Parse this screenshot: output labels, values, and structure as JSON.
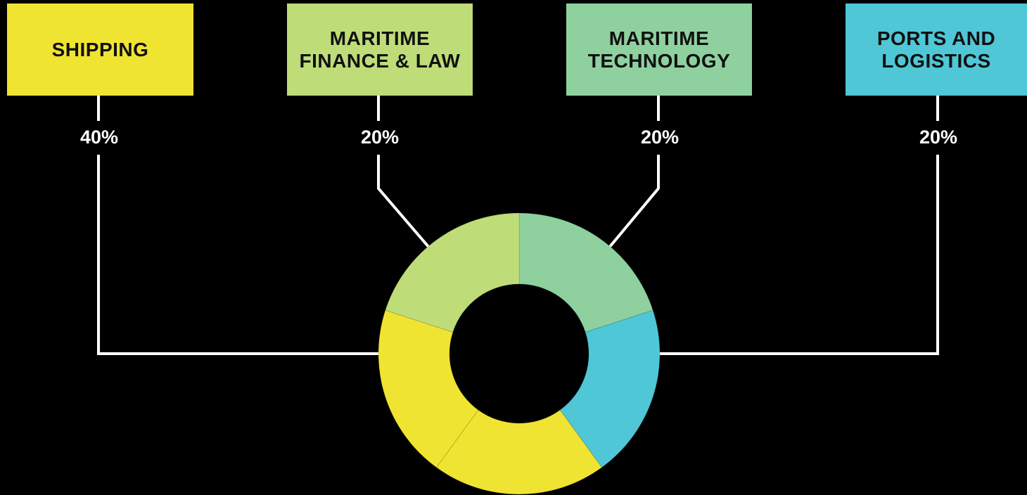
{
  "chart_data": {
    "type": "pie",
    "style": "donut",
    "categories": [
      "SHIPPING",
      "MARITIME\nFINANCE & LAW",
      "MARITIME\nTECHNOLOGY",
      "PORTS AND\nLOGISTICS"
    ],
    "values": [
      40,
      20,
      20,
      20
    ],
    "labels": [
      "40%",
      "20%",
      "20%",
      "20%"
    ],
    "colors": [
      "#f0e432",
      "#bedd78",
      "#8ed19f",
      "#4fc7d6"
    ],
    "title": "",
    "legend": "top",
    "grid": false
  },
  "theme": {
    "background": "#000000",
    "connector": "#ffffff",
    "slice_border": "#000000"
  }
}
